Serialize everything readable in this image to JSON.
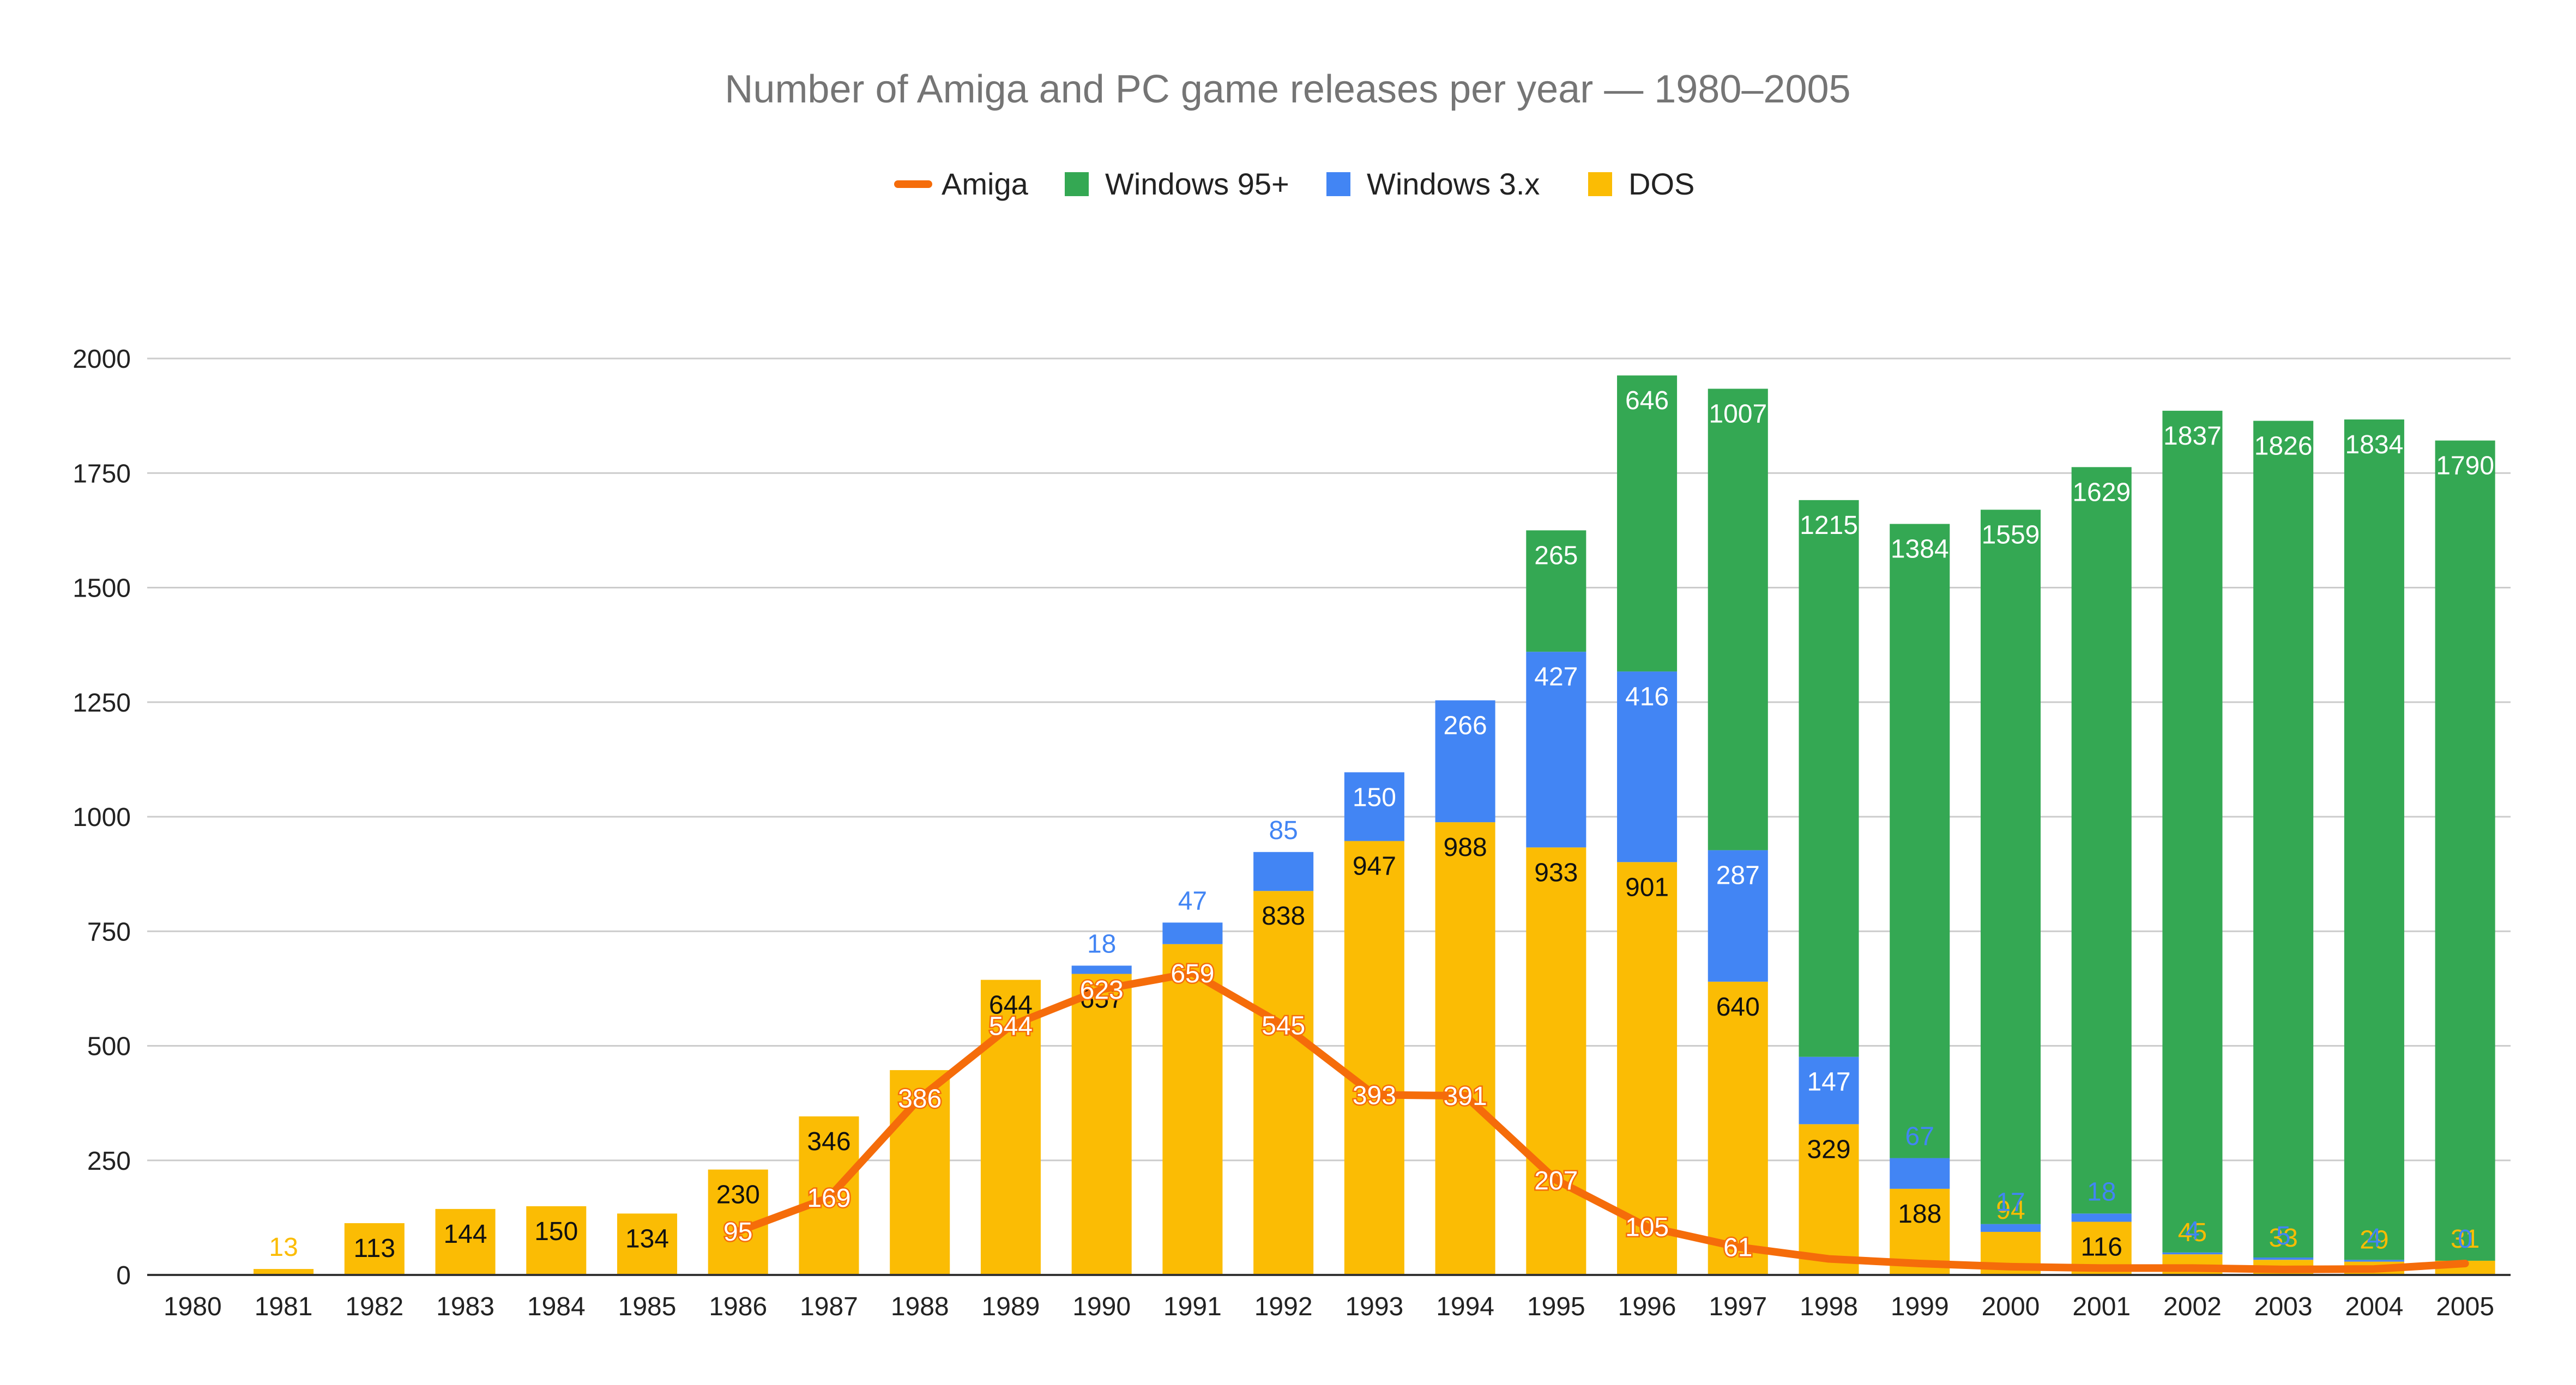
{
  "chart_data": {
    "type": "bar",
    "stacked": true,
    "title": "Number of Amiga and PC game releases per year — 1980–2005",
    "xlabel": "",
    "ylabel": "",
    "ylim": [
      0,
      2000
    ],
    "yticks": [
      0,
      250,
      500,
      750,
      1000,
      1250,
      1500,
      1750,
      2000
    ],
    "grid": true,
    "legend_position": "top-center",
    "categories": [
      "1980",
      "1981",
      "1982",
      "1983",
      "1984",
      "1985",
      "1986",
      "1987",
      "1988",
      "1989",
      "1990",
      "1991",
      "1992",
      "1993",
      "1994",
      "1995",
      "1996",
      "1997",
      "1998",
      "1999",
      "2000",
      "2001",
      "2002",
      "2003",
      "2004",
      "2005"
    ],
    "series": [
      {
        "name": "DOS",
        "kind": "bar",
        "color": "#fbbc04",
        "values": [
          0,
          13,
          113,
          144,
          150,
          134,
          230,
          346,
          447,
          644,
          657,
          722,
          838,
          947,
          988,
          933,
          901,
          640,
          329,
          188,
          94,
          116,
          45,
          33,
          29,
          31
        ],
        "labels": [
          "",
          "13",
          "113",
          "144",
          "150",
          "134",
          "230",
          "346",
          "",
          "644",
          "657",
          "",
          "838",
          "947",
          "988",
          "933",
          "901",
          "640",
          "329",
          "188",
          "94",
          "116",
          "45",
          "33",
          "29",
          "31"
        ]
      },
      {
        "name": "Windows 3.x",
        "kind": "bar",
        "color": "#4285f4",
        "values": [
          0,
          0,
          0,
          0,
          0,
          0,
          0,
          0,
          0,
          0,
          18,
          47,
          85,
          150,
          266,
          427,
          416,
          287,
          147,
          67,
          17,
          18,
          4,
          5,
          4,
          0
        ],
        "labels": [
          "",
          "",
          "",
          "",
          "",
          "",
          "",
          "",
          "",
          "",
          "18",
          "47",
          "85",
          "150",
          "266",
          "427",
          "416",
          "287",
          "147",
          "67",
          "17",
          "18",
          "4",
          "5",
          "4",
          "0"
        ]
      },
      {
        "name": "Windows 95+",
        "kind": "bar",
        "color": "#34a853",
        "values": [
          0,
          0,
          0,
          0,
          0,
          0,
          0,
          0,
          0,
          0,
          0,
          0,
          0,
          0,
          0,
          265,
          646,
          1007,
          1215,
          1384,
          1559,
          1629,
          1837,
          1826,
          1834,
          1790
        ],
        "labels": [
          "",
          "",
          "",
          "",
          "",
          "",
          "",
          "",
          "",
          "",
          "",
          "",
          "",
          "",
          "",
          "265",
          "646",
          "1007",
          "1215",
          "1384",
          "1559",
          "1629",
          "1837",
          "1826",
          "1834",
          "1790"
        ]
      },
      {
        "name": "Amiga",
        "kind": "line",
        "color": "#f56c0a",
        "values": [
          null,
          null,
          null,
          null,
          null,
          null,
          95,
          169,
          386,
          544,
          623,
          659,
          545,
          393,
          391,
          207,
          105,
          61,
          35,
          25,
          18,
          15,
          15,
          12,
          13,
          25
        ],
        "labels": [
          "",
          "",
          "",
          "",
          "",
          "",
          "95",
          "169",
          "386",
          "544",
          "623",
          "659",
          "545",
          "393",
          "391",
          "207",
          "105",
          "61",
          "",
          "",
          "",
          "",
          "",
          "",
          "",
          ""
        ]
      }
    ],
    "legend_order": [
      "Amiga",
      "Windows 95+",
      "Windows 3.x",
      "DOS"
    ]
  }
}
